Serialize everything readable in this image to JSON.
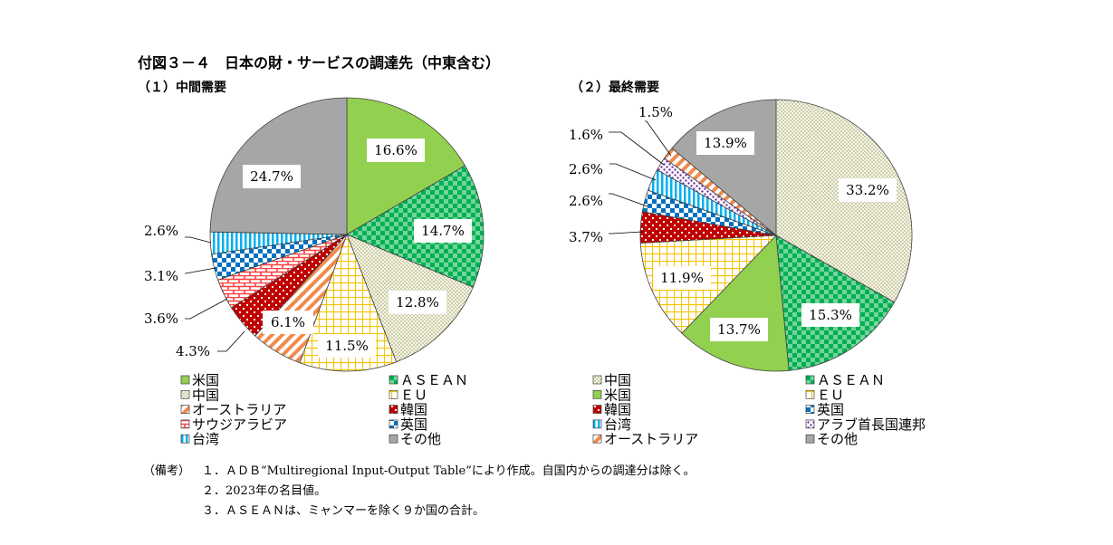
{
  "figure_title": "付図３－４　日本の財・サービスの調達先（中東含む）",
  "notes": {
    "prefix": "（備考）",
    "items": [
      "１．ＡＤＢ“Multiregional Input-Output Table”により作成。自国内からの調達分は除く。",
      "２．2023年の名目値。",
      "３．ＡＳＥＡＮは、ミャンマーを除く９か国の合計。"
    ]
  },
  "chart_data": [
    {
      "type": "pie",
      "title": "（１）中間需要",
      "slices": [
        {
          "name": "米国",
          "value": 16.6,
          "label": "16.6%",
          "color": "#92d050",
          "pattern": "solid"
        },
        {
          "name": "ＡＳＥＡＮ",
          "value": 14.7,
          "label": "14.7%",
          "color": "#00b050",
          "pattern": "checker"
        },
        {
          "name": "中国",
          "value": 12.8,
          "label": "12.8%",
          "color": "#ecedcc",
          "pattern": "dots"
        },
        {
          "name": "ＥＵ",
          "value": 11.5,
          "label": "11.5%",
          "color": "#ffd966",
          "pattern": "grid"
        },
        {
          "name": "オーストラリア",
          "value": 6.1,
          "label": "6.1%",
          "color": "#f4b183",
          "pattern": "diag"
        },
        {
          "name": "韓国",
          "value": 4.3,
          "label": "4.3%",
          "color": "#c00000",
          "pattern": "redcheck"
        },
        {
          "name": "サウジアラビア",
          "value": 3.6,
          "label": "3.6%",
          "color": "#ff5050",
          "pattern": "brick"
        },
        {
          "name": "英国",
          "value": 3.1,
          "label": "3.1%",
          "color": "#0070c0",
          "pattern": "bluecheck"
        },
        {
          "name": "台湾",
          "value": 2.6,
          "label": "2.6%",
          "color": "#00b0f0",
          "pattern": "vstripe"
        },
        {
          "name": "その他",
          "value": 24.7,
          "label": "24.7%",
          "color": "#a6a6a6",
          "pattern": "solid"
        }
      ],
      "legend": [
        "米国",
        "ＡＳＥＡＮ",
        "中国",
        "ＥＵ",
        "オーストラリア",
        "韓国",
        "サウジアラビア",
        "英国",
        "台湾",
        "その他"
      ]
    },
    {
      "type": "pie",
      "title": "（２）最終需要",
      "slices": [
        {
          "name": "中国",
          "value": 33.2,
          "label": "33.2%",
          "color": "#ecedcc",
          "pattern": "dots"
        },
        {
          "name": "ＡＳＥＡＮ",
          "value": 15.3,
          "label": "15.3%",
          "color": "#00b050",
          "pattern": "checker"
        },
        {
          "name": "米国",
          "value": 13.7,
          "label": "13.7%",
          "color": "#92d050",
          "pattern": "solid"
        },
        {
          "name": "ＥＵ",
          "value": 11.9,
          "label": "11.9%",
          "color": "#ffd966",
          "pattern": "grid"
        },
        {
          "name": "韓国",
          "value": 3.7,
          "label": "3.7%",
          "color": "#c00000",
          "pattern": "redcheck"
        },
        {
          "name": "英国",
          "value": 2.6,
          "label": "2.6%",
          "color": "#0070c0",
          "pattern": "bluecheck"
        },
        {
          "name": "台湾",
          "value": 2.6,
          "label": "2.6%",
          "color": "#00b0f0",
          "pattern": "vstripe"
        },
        {
          "name": "アラブ首長国連邦",
          "value": 1.6,
          "label": "1.6%",
          "color": "#7030a0",
          "pattern": "purpledots"
        },
        {
          "name": "オーストラリア",
          "value": 1.5,
          "label": "1.5%",
          "color": "#f4b183",
          "pattern": "diag"
        },
        {
          "name": "その他",
          "value": 13.9,
          "label": "13.9%",
          "color": "#a6a6a6",
          "pattern": "solid"
        }
      ],
      "legend": [
        "中国",
        "ＡＳＥＡＮ",
        "米国",
        "ＥＵ",
        "韓国",
        "英国",
        "台湾",
        "アラブ首長国連邦",
        "オーストラリア",
        "その他"
      ]
    }
  ]
}
